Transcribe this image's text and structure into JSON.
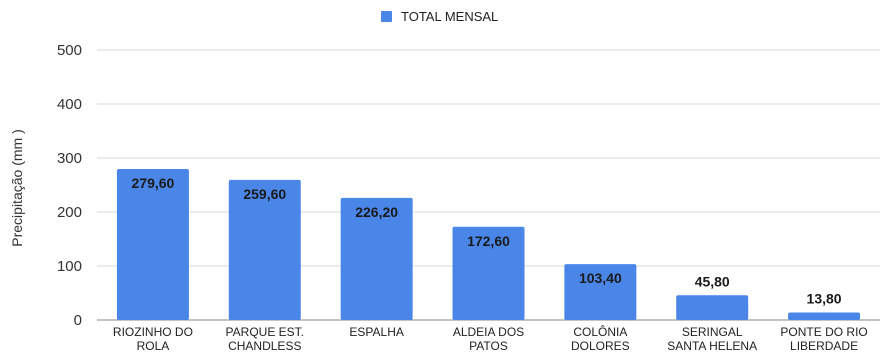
{
  "chart_data": {
    "type": "bar",
    "title": "",
    "ylabel": "Precipitação (mm )",
    "xlabel": "",
    "ylim": [
      0,
      500
    ],
    "yticks": [
      "0",
      "100",
      "200",
      "300",
      "400",
      "500"
    ],
    "grid": true,
    "legend_position": "top-center",
    "categories": [
      [
        "RIOZINHO DO",
        "ROLA"
      ],
      [
        "PARQUE EST.",
        "CHANDLESS"
      ],
      [
        "ESPALHA"
      ],
      [
        "ALDEIA DOS",
        "PATOS"
      ],
      [
        "COLÔNIA",
        "DOLORES"
      ],
      [
        "SERINGAL",
        "SANTA HELENA"
      ],
      [
        "PONTE DO RIO",
        "LIBERDADE"
      ]
    ],
    "series": [
      {
        "name": "TOTAL MENSAL",
        "color": "#4a86e8",
        "values": [
          279.6,
          259.6,
          226.2,
          172.6,
          103.4,
          45.8,
          13.8
        ],
        "labels": [
          "279,60",
          "259,60",
          "226,20",
          "172,60",
          "103,40",
          "45,80",
          "13,80"
        ]
      }
    ]
  }
}
